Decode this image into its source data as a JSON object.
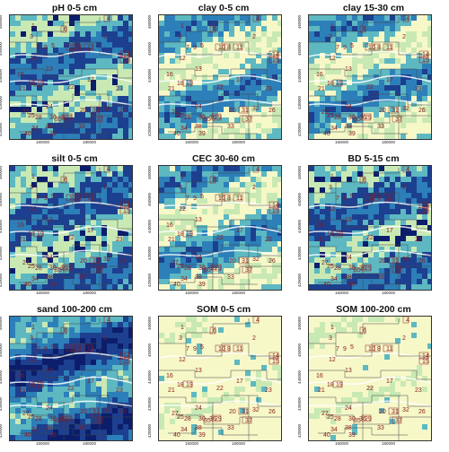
{
  "panels": [
    {
      "title": "pH 0-5 cm",
      "scheme": "wet"
    },
    {
      "title": "clay 0-5 cm",
      "scheme": "mid"
    },
    {
      "title": "clay 15-30 cm",
      "scheme": "mid"
    },
    {
      "title": "silt 0-5 cm",
      "scheme": "wet"
    },
    {
      "title": "CEC 30-60 cm",
      "scheme": "mid"
    },
    {
      "title": "BD 5-15 cm",
      "scheme": "wet"
    },
    {
      "title": "sand 100-200 cm",
      "scheme": "dark"
    },
    {
      "title": "SOM 0-5 cm",
      "scheme": "dry"
    },
    {
      "title": "SOM 100-200 cm",
      "scheme": "dry"
    }
  ],
  "y_ticks": [
    "420000",
    "430000",
    "440000",
    "450000",
    "460000"
  ],
  "x_ticks": [
    "160000",
    "180000"
  ],
  "zones": [
    "1",
    "2",
    "3",
    "4",
    "5",
    "6",
    "7",
    "8",
    "9",
    "10",
    "11",
    "12",
    "13",
    "14",
    "15",
    "16",
    "17",
    "18",
    "19",
    "20",
    "21",
    "22",
    "23",
    "24",
    "25",
    "26",
    "27",
    "28",
    "29",
    "30",
    "31",
    "32",
    "33",
    "34",
    "35",
    "36",
    "37",
    "38",
    "39",
    "40"
  ],
  "colors": {
    "pale": "#f6f8c8",
    "light_green": "#c9e9b4",
    "teal": "#5db8c2",
    "mid_blue": "#2c7fb8",
    "dark_blue": "#1d3f8f",
    "navy": "#0c1e6b",
    "zone_label": "#8b1a1a",
    "river": "#ffffff"
  }
}
